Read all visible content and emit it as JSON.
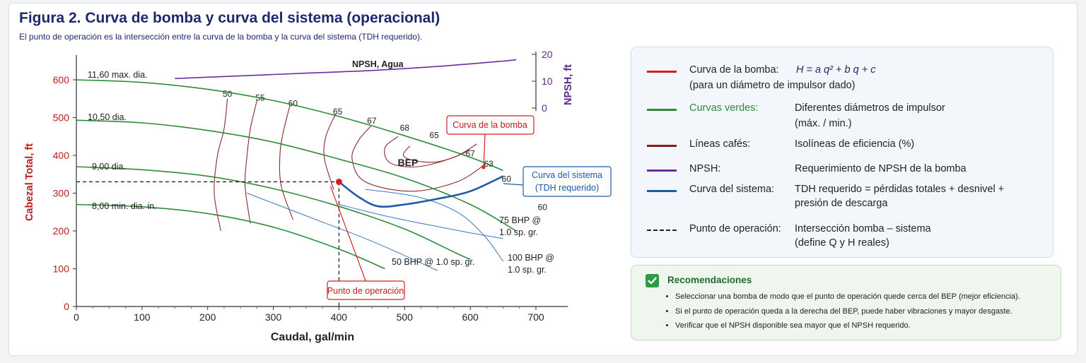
{
  "figure": {
    "title": "Figura 2. Curva de bomba y curva del sistema (operacional)",
    "subtitle": "El punto de operación es la intersección entre la curva de la bomba y la curva del sistema (TDH requerido)."
  },
  "chart_data": {
    "type": "line",
    "xlabel": "Caudal, gal/min",
    "ylabel": "Cabezal Total, ft",
    "y2label": "NPSH, ft",
    "xlim": [
      0,
      700
    ],
    "ylim": [
      0,
      640
    ],
    "y2lim": [
      0,
      20
    ],
    "x_ticks": [
      0,
      100,
      200,
      300,
      400,
      500,
      600,
      700
    ],
    "y_ticks": [
      0,
      100,
      200,
      300,
      400,
      500,
      600
    ],
    "y2_ticks": [
      0,
      10,
      20
    ],
    "grid": false,
    "pump_curves": [
      {
        "name": "11,60 max. dia.",
        "points": [
          [
            0,
            600
          ],
          [
            100,
            593
          ],
          [
            200,
            575
          ],
          [
            300,
            545
          ],
          [
            400,
            503
          ],
          [
            500,
            452
          ],
          [
            600,
            395
          ],
          [
            650,
            360
          ]
        ]
      },
      {
        "name": "10,50 dia.",
        "points": [
          [
            0,
            493
          ],
          [
            100,
            486
          ],
          [
            200,
            466
          ],
          [
            300,
            435
          ],
          [
            400,
            390
          ],
          [
            500,
            340
          ],
          [
            600,
            270
          ],
          [
            670,
            200
          ]
        ]
      },
      {
        "name": "9,00 dia.",
        "points": [
          [
            0,
            370
          ],
          [
            100,
            362
          ],
          [
            200,
            345
          ],
          [
            300,
            312
          ],
          [
            400,
            265
          ],
          [
            500,
            205
          ],
          [
            580,
            140
          ],
          [
            600,
            125
          ]
        ]
      },
      {
        "name": "8,00 min. dia. in.",
        "points": [
          [
            0,
            270
          ],
          [
            100,
            264
          ],
          [
            200,
            246
          ],
          [
            300,
            210
          ],
          [
            400,
            152
          ],
          [
            470,
            100
          ]
        ]
      }
    ],
    "efficiency_isolines": [
      {
        "label": "50",
        "points": [
          [
            230,
            550
          ],
          [
            225,
            470
          ],
          [
            215,
            400
          ],
          [
            210,
            300
          ],
          [
            220,
            200
          ]
        ]
      },
      {
        "label": "55",
        "points": [
          [
            275,
            545
          ],
          [
            265,
            470
          ],
          [
            260,
            400
          ],
          [
            257,
            320
          ],
          [
            265,
            220
          ]
        ]
      },
      {
        "label": "60",
        "points": [
          [
            325,
            530
          ],
          [
            315,
            460
          ],
          [
            310,
            400
          ],
          [
            312,
            320
          ],
          [
            330,
            230
          ]
        ]
      },
      {
        "label": "65",
        "points": [
          [
            395,
            510
          ],
          [
            380,
            450
          ],
          [
            378,
            390
          ],
          [
            392,
            310
          ]
        ]
      },
      {
        "label": "67",
        "points": [
          [
            450,
            480
          ],
          [
            430,
            440
          ],
          [
            420,
            390
          ],
          [
            440,
            330
          ],
          [
            510,
            305
          ],
          [
            580,
            330
          ],
          [
            625,
            380
          ]
        ]
      },
      {
        "label": "68",
        "points": [
          [
            490,
            450
          ],
          [
            470,
            420
          ],
          [
            478,
            380
          ],
          [
            520,
            370
          ],
          [
            575,
            395
          ],
          [
            610,
            430
          ]
        ]
      },
      {
        "label": "BEP",
        "points": [
          [
            508,
            425
          ],
          [
            498,
            402
          ],
          [
            510,
            388
          ],
          [
            545,
            382
          ],
          [
            575,
            395
          ],
          [
            600,
            415
          ]
        ]
      }
    ],
    "efficiency_labels": [
      {
        "text": "50",
        "x": 230,
        "y": 555
      },
      {
        "text": "55",
        "x": 280,
        "y": 545
      },
      {
        "text": "60",
        "x": 330,
        "y": 530
      },
      {
        "text": "65",
        "x": 398,
        "y": 508
      },
      {
        "text": "67",
        "x": 450,
        "y": 484
      },
      {
        "text": "68",
        "x": 500,
        "y": 465
      },
      {
        "text": "65",
        "x": 545,
        "y": 446
      },
      {
        "text": "67",
        "x": 600,
        "y": 397
      },
      {
        "text": "63",
        "x": 628,
        "y": 370
      },
      {
        "text": "60",
        "x": 655,
        "y": 330
      },
      {
        "text": "60",
        "x": 710,
        "y": 255
      }
    ],
    "bep_label": {
      "text": "BEP",
      "x": 505,
      "y": 372
    },
    "npsh": {
      "name": "NPSH, Agua",
      "points": [
        [
          150,
          11
        ],
        [
          250,
          12
        ],
        [
          350,
          13
        ],
        [
          450,
          14
        ],
        [
          550,
          15.5
        ],
        [
          650,
          17.5
        ],
        [
          670,
          18
        ]
      ]
    },
    "system_curve": {
      "name": "Curva del sistema",
      "points": [
        [
          400,
          330
        ],
        [
          430,
          290
        ],
        [
          460,
          265
        ],
        [
          500,
          270
        ],
        [
          550,
          285
        ],
        [
          600,
          305
        ],
        [
          650,
          345
        ]
      ]
    },
    "bhp_curves": [
      {
        "label": "50 BHP @ 1.0 sp. gr.",
        "points": [
          [
            260,
            300
          ],
          [
            320,
            260
          ],
          [
            380,
            220
          ],
          [
            440,
            180
          ],
          [
            500,
            135
          ],
          [
            550,
            95
          ]
        ]
      },
      {
        "label": "75 BHP @ 1.0 sp. gr.",
        "points": [
          [
            400,
            270
          ],
          [
            470,
            240
          ],
          [
            540,
            215
          ],
          [
            600,
            195
          ],
          [
            650,
            180
          ]
        ]
      },
      {
        "label": "100 BHP @ 1.0 sp. gr.",
        "points": [
          [
            440,
            310
          ],
          [
            520,
            290
          ],
          [
            580,
            250
          ],
          [
            620,
            190
          ],
          [
            650,
            120
          ]
        ]
      }
    ],
    "operating_point": {
      "x": 400,
      "y": 330,
      "label": "Punto de operación"
    },
    "callouts": {
      "pump": "Curva de la bomba",
      "system_line1": "Curva del sistema",
      "system_line2": "(TDH requerido)",
      "bhp50": "50 BHP @ 1.0 sp. gr.",
      "bhp75_line1": "75 BHP @",
      "bhp75_line2": "1.0 sp. gr.",
      "bhp100_line1": "100 BHP @",
      "bhp100_line2": "1.0 sp. gr."
    }
  },
  "legend": {
    "items": [
      {
        "label": "Curva de la bomba:",
        "formula": "H = a q² + b q + c",
        "desc2": "(para un diámetro de impulsor dado)",
        "color": "#d42020"
      },
      {
        "label": "Curvas verdes:",
        "desc": "Diferentes diámetros de impulsor",
        "desc2": "(máx. / min.)",
        "color": "#2e8b3a"
      },
      {
        "label": "Líneas cafés:",
        "desc": "Isolíneas de eficiencia (%)",
        "color": "#7d1e1e"
      },
      {
        "label": "NPSH:",
        "desc": "Requerimiento de NPSH de la bomba",
        "color": "#6a2ca0"
      },
      {
        "label": "Curva del sistema:",
        "desc": "TDH requerido = pérdidas totales + desnivel +",
        "desc2": "presión de descarga",
        "color": "#1d5aa8"
      },
      {
        "label": "Punto de operación:",
        "desc": "Intersección bomba – sistema",
        "desc2": "(define Q y H reales)",
        "color": "#222222"
      }
    ]
  },
  "recommendations": {
    "title": "Recomendaciones",
    "items": [
      "Seleccionar una bomba de modo que el punto de operación quede cerca del BEP (mejor eficiencia).",
      "Si el punto de operación queda a la derecha del BEP, puede haber vibraciones y mayor desgaste.",
      "Verificar que el NPSH disponible sea mayor que el NPSH requerido."
    ]
  }
}
